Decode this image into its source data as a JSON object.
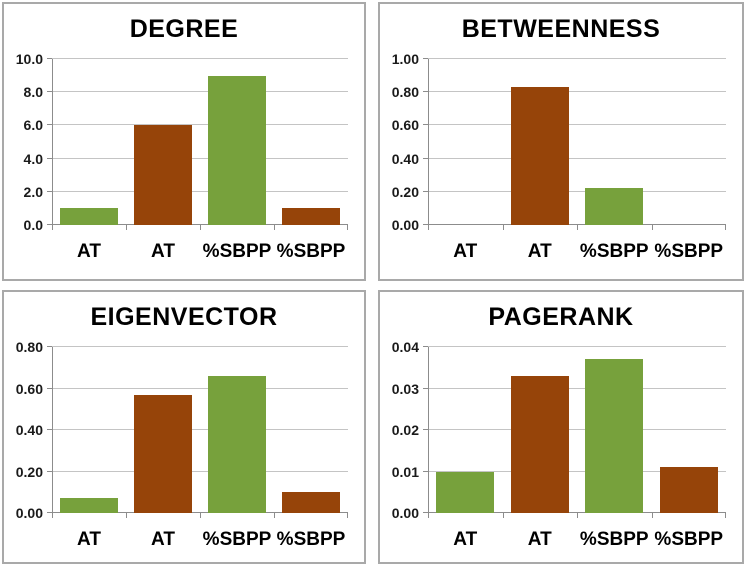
{
  "colors": {
    "green": "#77A13C",
    "brown": "#964409",
    "gridline": "#C4C4C4",
    "axis": "#8C8C8C",
    "panel_border": "#A9A9A9",
    "title_text": "#000000",
    "tick_text": "#1A1A1A",
    "category_text": "#000000",
    "background": "#FFFFFF"
  },
  "chart_data": [
    {
      "type": "bar",
      "title": "DEGREE",
      "categories": [
        "AT",
        "AT",
        "%SBPP",
        "%SBPP"
      ],
      "values": [
        1.0,
        6.0,
        9.0,
        1.0
      ],
      "bar_colors": [
        "green",
        "brown",
        "green",
        "brown"
      ],
      "xlabel": "",
      "ylabel": "",
      "ylim": [
        0,
        10
      ],
      "ytick_step": 2,
      "ytick_decimals": 1,
      "grid": true,
      "legend": null
    },
    {
      "type": "bar",
      "title": "BETWEENNESS",
      "categories": [
        "AT",
        "AT",
        "%SBPP",
        "%SBPP"
      ],
      "values": [
        0,
        0.83,
        0.22,
        0
      ],
      "bar_colors": [
        "green",
        "brown",
        "green",
        "brown"
      ],
      "xlabel": "",
      "ylabel": "",
      "ylim": [
        0,
        1.0
      ],
      "ytick_step": 0.2,
      "ytick_decimals": 2,
      "grid": true,
      "legend": null
    },
    {
      "type": "bar",
      "title": "EIGENVECTOR",
      "categories": [
        "AT",
        "AT",
        "%SBPP",
        "%SBPP"
      ],
      "values": [
        0.07,
        0.57,
        0.66,
        0.1
      ],
      "bar_colors": [
        "green",
        "brown",
        "green",
        "brown"
      ],
      "xlabel": "",
      "ylabel": "",
      "ylim": [
        0,
        0.8
      ],
      "ytick_step": 0.2,
      "ytick_decimals": 2,
      "grid": true,
      "legend": null
    },
    {
      "type": "bar",
      "title": "PAGERANK",
      "categories": [
        "AT",
        "AT",
        "%SBPP",
        "%SBPP"
      ],
      "values": [
        0.01,
        0.033,
        0.037,
        0.011
      ],
      "bar_colors": [
        "green",
        "brown",
        "green",
        "brown"
      ],
      "xlabel": "",
      "ylabel": "",
      "ylim": [
        0,
        0.04
      ],
      "ytick_step": 0.01,
      "ytick_decimals": 2,
      "grid": true,
      "legend": null
    }
  ]
}
